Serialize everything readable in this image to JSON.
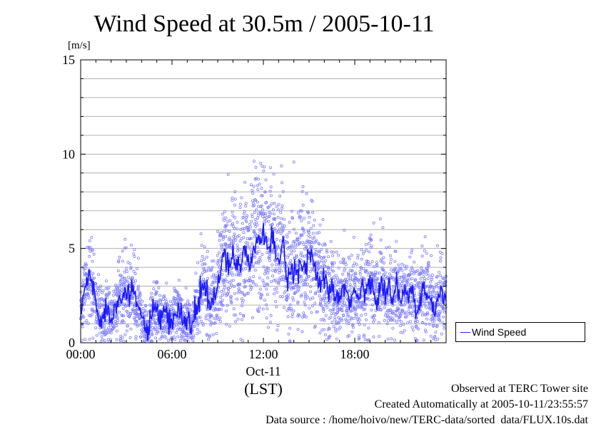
{
  "header": {
    "title": "Wind Speed at 30.5m / 2005-10-11"
  },
  "footer": {
    "line1": "Observed at TERC Tower site",
    "line2": "Created Automatically at 2005-10-11/23:55:57",
    "line3": "Data source : /home/hoivo/new/TERC-data/sorted_data/FLUX.10s.dat"
  },
  "legend": {
    "label": "Wind Speed"
  },
  "chart_data": {
    "type": "scatter",
    "title": "Wind Speed at 30.5m / 2005-10-11",
    "ylabel": "[m/s]",
    "xlabel": "(LST)",
    "date_label": "Oct-11",
    "ylim": [
      0,
      15
    ],
    "xlim": [
      0,
      24
    ],
    "y_ticks": [
      {
        "value": 0,
        "label": "0"
      },
      {
        "value": 5,
        "label": "5"
      },
      {
        "value": 10,
        "label": "10"
      },
      {
        "value": 15,
        "label": "15"
      }
    ],
    "x_ticks": [
      {
        "value": 0,
        "label": "00:00"
      },
      {
        "value": 6,
        "label": "06:00"
      },
      {
        "value": 12,
        "label": "12:00"
      },
      {
        "value": 18,
        "label": "18:00"
      }
    ],
    "grid": true,
    "legend_position": "right",
    "colors": {
      "line": "#1a1aff",
      "points": "#8080ff",
      "grid": "#b0b0b0"
    },
    "series": [
      {
        "name": "Wind Speed",
        "x_hours": [
          0.0,
          0.25,
          0.5,
          0.75,
          1.0,
          1.25,
          1.5,
          1.75,
          2.0,
          2.25,
          2.5,
          2.75,
          3.0,
          3.25,
          3.5,
          3.75,
          4.0,
          4.25,
          4.5,
          4.75,
          5.0,
          5.25,
          5.5,
          5.75,
          6.0,
          6.25,
          6.5,
          6.75,
          7.0,
          7.25,
          7.5,
          7.75,
          8.0,
          8.25,
          8.5,
          8.75,
          9.0,
          9.25,
          9.5,
          9.75,
          10.0,
          10.25,
          10.5,
          10.75,
          11.0,
          11.25,
          11.5,
          11.75,
          12.0,
          12.25,
          12.5,
          12.75,
          13.0,
          13.25,
          13.5,
          13.75,
          14.0,
          14.25,
          14.5,
          14.75,
          15.0,
          15.25,
          15.5,
          15.75,
          16.0,
          16.25,
          16.5,
          16.75,
          17.0,
          17.25,
          17.5,
          17.75,
          18.0,
          18.25,
          18.5,
          18.75,
          19.0,
          19.25,
          19.5,
          19.75,
          20.0,
          20.25,
          20.5,
          20.75,
          21.0,
          21.25,
          21.5,
          21.75,
          22.0,
          22.25,
          22.5,
          22.75,
          23.0,
          23.25,
          23.5,
          23.75
        ],
        "mean_values": [
          1.5,
          2.8,
          3.6,
          3.2,
          2.1,
          1.4,
          1.3,
          1.9,
          1.2,
          2.0,
          2.7,
          2.5,
          2.6,
          2.2,
          2.8,
          1.9,
          1.4,
          0.9,
          0.6,
          1.5,
          1.8,
          1.2,
          1.5,
          1.0,
          1.1,
          1.6,
          1.5,
          1.2,
          1.3,
          0.8,
          1.5,
          2.0,
          3.2,
          2.6,
          1.8,
          2.4,
          2.9,
          3.8,
          4.9,
          4.2,
          4.6,
          4.4,
          3.9,
          5.2,
          4.3,
          4.5,
          5.7,
          4.9,
          6.1,
          4.5,
          5.5,
          4.8,
          4.2,
          5.4,
          3.8,
          3.5,
          4.1,
          3.7,
          4.6,
          3.8,
          4.8,
          4.2,
          3.6,
          3.1,
          3.4,
          2.6,
          2.9,
          2.4,
          2.3,
          2.5,
          2.6,
          2.3,
          2.7,
          2.1,
          3.2,
          2.4,
          3.5,
          2.9,
          2.3,
          3.3,
          2.5,
          2.8,
          2.2,
          3.0,
          2.1,
          2.7,
          2.4,
          3.0,
          1.6,
          2.0,
          2.7,
          2.5,
          2.2,
          1.6,
          2.4,
          2.6
        ]
      }
    ]
  }
}
